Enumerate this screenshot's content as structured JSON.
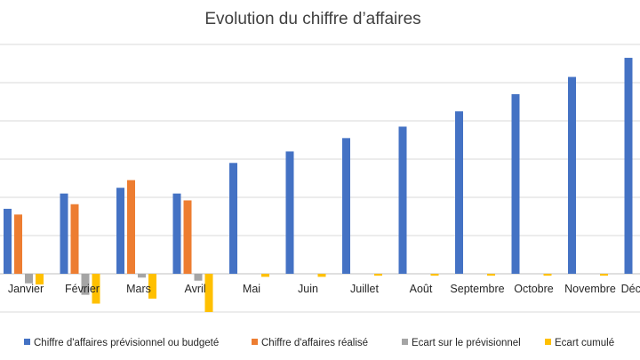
{
  "chart_data": {
    "type": "bar",
    "title": "Evolution du chiffre d’affaires",
    "xlabel": "",
    "ylabel": "",
    "categories": [
      "Janvier",
      "Février",
      "Mars",
      "Avril",
      "Mai",
      "Juin",
      "Juillet",
      "Août",
      "Septembre",
      "Octobre",
      "Novembre",
      "Décembre"
    ],
    "ylim": [
      -1,
      6
    ],
    "grid": true,
    "legend": "bottom",
    "series": [
      {
        "name": "Chiffre d'affaires prévisionnel ou budgeté",
        "color": "#4472c4",
        "values": [
          1.7,
          2.1,
          2.25,
          2.1,
          2.9,
          3.2,
          3.55,
          3.85,
          4.25,
          4.7,
          5.15,
          5.65
        ]
      },
      {
        "name": "Chiffre d'affaires réalisé",
        "color": "#ed7d31",
        "values": [
          1.55,
          1.82,
          2.45,
          1.92,
          null,
          null,
          null,
          null,
          null,
          null,
          null,
          null
        ]
      },
      {
        "name": "Ecart sur le prévisionnel",
        "color": "#a5a5a5",
        "values": [
          -0.25,
          -0.55,
          -0.1,
          -0.18,
          null,
          null,
          null,
          null,
          null,
          null,
          null,
          null
        ]
      },
      {
        "name": "Ecart cumulé",
        "color": "#ffc000",
        "values": [
          -0.28,
          -0.78,
          -0.65,
          -1.0,
          -0.08,
          -0.08,
          -0.05,
          -0.05,
          -0.05,
          -0.05,
          -0.05,
          -0.05
        ]
      }
    ]
  }
}
